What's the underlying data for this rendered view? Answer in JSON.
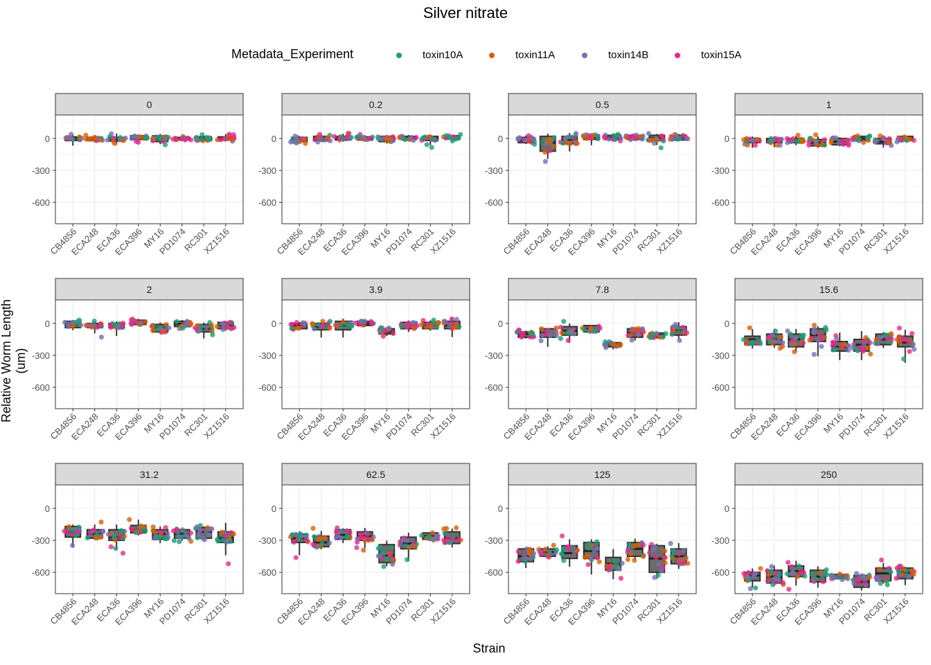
{
  "chart_data": {
    "type": "boxplot-jitter-facets",
    "title": "Silver nitrate",
    "xlabel": "Strain",
    "ylabel": "Relative Worm Length (um)",
    "ylim": [
      -800,
      220
    ],
    "yticks": [
      0,
      -300,
      -600
    ],
    "legend": {
      "title": "Metadata_Experiment",
      "placement": "top",
      "entries": [
        {
          "name": "toxin10A",
          "color": "#1b9e77"
        },
        {
          "name": "toxin11A",
          "color": "#d95f02"
        },
        {
          "name": "toxin14B",
          "color": "#7570b3"
        },
        {
          "name": "toxin15A",
          "color": "#e7298a"
        }
      ]
    },
    "categories": [
      "CB4856",
      "ECA248",
      "ECA36",
      "ECA396",
      "MY16",
      "PD1074",
      "RC301",
      "XZ1516"
    ],
    "panels": [
      {
        "facet": "0",
        "medians": [
          0,
          -5,
          -10,
          5,
          0,
          0,
          -5,
          0
        ],
        "q1": [
          -20,
          -20,
          -25,
          -10,
          -30,
          -15,
          -20,
          -15
        ],
        "q3": [
          15,
          10,
          10,
          25,
          25,
          10,
          15,
          15
        ],
        "ymin": [
          -100,
          -40,
          -80,
          -40,
          -70,
          -30,
          -40,
          -40
        ],
        "ymax": [
          50,
          40,
          70,
          40,
          55,
          25,
          35,
          55
        ]
      },
      {
        "facet": "0.2",
        "medians": [
          -10,
          0,
          0,
          0,
          -10,
          5,
          0,
          10
        ],
        "q1": [
          -30,
          -20,
          -15,
          -15,
          -30,
          -10,
          -20,
          -5
        ],
        "q3": [
          10,
          20,
          20,
          15,
          20,
          20,
          20,
          25
        ],
        "ymin": [
          -50,
          -40,
          -40,
          -40,
          -60,
          -30,
          -90,
          -30
        ],
        "ymax": [
          30,
          50,
          60,
          40,
          40,
          40,
          50,
          40
        ]
      },
      {
        "facet": "0.5",
        "medians": [
          -20,
          -40,
          -10,
          10,
          10,
          10,
          5,
          10
        ],
        "q1": [
          -40,
          -120,
          -50,
          -10,
          -10,
          -10,
          -20,
          -15
        ],
        "q3": [
          10,
          20,
          20,
          30,
          30,
          30,
          30,
          30
        ],
        "ymin": [
          -60,
          -240,
          -170,
          -100,
          -40,
          -30,
          -90,
          -30
        ],
        "ymax": [
          40,
          60,
          70,
          40,
          50,
          40,
          50,
          50
        ]
      },
      {
        "facet": "1",
        "medians": [
          -20,
          -20,
          -20,
          -40,
          -30,
          0,
          -30,
          0
        ],
        "q1": [
          -40,
          -40,
          -40,
          -70,
          -60,
          -20,
          -50,
          -20
        ],
        "q3": [
          0,
          0,
          0,
          -10,
          0,
          20,
          0,
          20
        ],
        "ymin": [
          -120,
          -110,
          -80,
          -100,
          -80,
          -40,
          -110,
          -40
        ],
        "ymax": [
          30,
          30,
          40,
          40,
          20,
          30,
          30,
          30
        ]
      },
      {
        "facet": "2",
        "medians": [
          -10,
          -20,
          -20,
          10,
          -40,
          -5,
          -50,
          -20
        ],
        "q1": [
          -40,
          -40,
          -40,
          -10,
          -80,
          -30,
          -80,
          -50
        ],
        "q3": [
          20,
          0,
          0,
          30,
          -10,
          20,
          -10,
          10
        ],
        "ymin": [
          -80,
          -130,
          -170,
          -40,
          -110,
          -50,
          -180,
          -80
        ],
        "ymax": [
          40,
          30,
          30,
          50,
          20,
          40,
          20,
          30
        ]
      },
      {
        "facet": "3.9",
        "medians": [
          -20,
          -30,
          -20,
          0,
          -80,
          -20,
          -20,
          -20
        ],
        "q1": [
          -50,
          -60,
          -60,
          -20,
          -100,
          -50,
          -50,
          -50
        ],
        "q3": [
          0,
          0,
          20,
          20,
          -50,
          10,
          10,
          20
        ],
        "ymin": [
          -60,
          -180,
          -180,
          -40,
          -130,
          -100,
          -80,
          -180
        ],
        "ymax": [
          20,
          20,
          60,
          40,
          -40,
          40,
          40,
          70
        ]
      },
      {
        "facet": "7.8",
        "medians": [
          -100,
          -90,
          -70,
          -50,
          -200,
          -90,
          -110,
          -60
        ],
        "q1": [
          -130,
          -130,
          -110,
          -80,
          -220,
          -130,
          -130,
          -110
        ],
        "q3": [
          -80,
          -50,
          -30,
          -20,
          -180,
          -50,
          -90,
          -30
        ],
        "ymin": [
          -150,
          -280,
          -230,
          -100,
          -260,
          -180,
          -150,
          -170
        ],
        "ymax": [
          -60,
          -40,
          20,
          -10,
          -170,
          -30,
          -80,
          40
        ]
      },
      {
        "facet": "15.6",
        "medians": [
          -150,
          -150,
          -150,
          -110,
          -220,
          -200,
          -150,
          -180
        ],
        "q1": [
          -200,
          -200,
          -220,
          -170,
          -260,
          -260,
          -200,
          -220
        ],
        "q3": [
          -120,
          -100,
          -100,
          -50,
          -170,
          -150,
          -100,
          -120
        ],
        "ymin": [
          -260,
          -250,
          -300,
          -400,
          -400,
          -400,
          -250,
          -470
        ],
        "ymax": [
          -10,
          -20,
          -20,
          -10,
          -30,
          -20,
          -70,
          -20
        ]
      },
      {
        "facet": "31.2",
        "medians": [
          -220,
          -240,
          -270,
          -200,
          -240,
          -240,
          -220,
          -280
        ],
        "q1": [
          -270,
          -280,
          -300,
          -230,
          -290,
          -280,
          -280,
          -320
        ],
        "q3": [
          -170,
          -200,
          -200,
          -160,
          -200,
          -200,
          -180,
          -220
        ],
        "ymin": [
          -430,
          -300,
          -430,
          -270,
          -350,
          -320,
          -320,
          -520
        ],
        "ymax": [
          -140,
          -120,
          -120,
          -70,
          -150,
          -190,
          -160,
          -80
        ]
      },
      {
        "facet": "62.5",
        "medians": [
          -280,
          -320,
          -250,
          -260,
          -440,
          -330,
          -260,
          -280
        ],
        "q1": [
          -320,
          -360,
          -290,
          -300,
          -510,
          -380,
          -290,
          -330
        ],
        "q3": [
          -240,
          -260,
          -200,
          -220,
          -340,
          -270,
          -230,
          -220
        ],
        "ymin": [
          -520,
          -400,
          -350,
          -420,
          -560,
          -570,
          -310,
          -390
        ],
        "ymax": [
          -200,
          -180,
          -180,
          -160,
          -280,
          -200,
          -230,
          -170
        ]
      },
      {
        "facet": "125",
        "medians": [
          -450,
          -410,
          -420,
          -400,
          -520,
          -380,
          -470,
          -450
        ],
        "q1": [
          -500,
          -450,
          -470,
          -470,
          -580,
          -450,
          -600,
          -520
        ],
        "q3": [
          -380,
          -380,
          -350,
          -320,
          -460,
          -320,
          -350,
          -380
        ],
        "ymin": [
          -600,
          -460,
          -600,
          -720,
          -720,
          -500,
          -700,
          -600
        ],
        "ymax": [
          -350,
          -340,
          -250,
          -270,
          -330,
          -260,
          -320,
          -290
        ]
      },
      {
        "facet": "250",
        "medians": [
          -630,
          -640,
          -590,
          -640,
          -640,
          -690,
          -610,
          -600
        ],
        "q1": [
          -680,
          -700,
          -640,
          -690,
          -660,
          -740,
          -680,
          -660
        ],
        "q3": [
          -600,
          -580,
          -540,
          -580,
          -620,
          -630,
          -560,
          -560
        ],
        "ymin": [
          -780,
          -730,
          -780,
          -780,
          -670,
          -790,
          -720,
          -760
        ],
        "ymax": [
          -540,
          -510,
          -460,
          -520,
          -610,
          -600,
          -480,
          -540
        ]
      }
    ]
  }
}
